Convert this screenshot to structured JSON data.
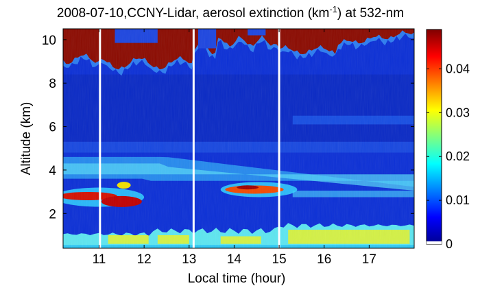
{
  "chart_data": {
    "type": "heatmap",
    "title": {
      "prefix": "2008-07-10,CCNY-Lidar, aerosol extinction (km",
      "superscript": "-1",
      "suffix": ") at 532-nm"
    },
    "xlabel": "Local time (hour)",
    "ylabel": "Altitude (km)",
    "xlim": [
      10.2,
      18.0
    ],
    "ylim": [
      0.4,
      10.5
    ],
    "xticks": [
      "11",
      "12",
      "13",
      "14",
      "15",
      "16",
      "17"
    ],
    "yticks": [
      "2",
      "4",
      "6",
      "8",
      "10"
    ],
    "colorbar": {
      "range": [
        0,
        0.049
      ],
      "ticks": [
        "0",
        "0.01",
        "0.02",
        "0.03",
        "0.04"
      ],
      "colormap": "jet"
    },
    "data_gaps_hours": [
      11.02,
      13.1,
      15.0
    ],
    "features": [
      {
        "name": "boundary layer (near surface)",
        "time": [
          10.2,
          18.0
        ],
        "altitude": [
          0.5,
          1.5
        ],
        "extinction": 0.018
      },
      {
        "name": "aerosol layer A",
        "time": [
          10.2,
          12.0
        ],
        "altitude": [
          2.3,
          3.0
        ],
        "extinction": 0.045
      },
      {
        "name": "aerosol layer B",
        "time": [
          13.7,
          15.3
        ],
        "altitude": [
          2.9,
          3.3
        ],
        "extinction": 0.04
      },
      {
        "name": "residual layer band",
        "time": [
          10.2,
          18.0
        ],
        "altitude": [
          3.5,
          4.6
        ],
        "extinction": 0.012
      },
      {
        "name": "cirrus cloud",
        "time": [
          10.2,
          18.0
        ],
        "altitude": [
          8.5,
          10.5
        ],
        "extinction": 0.049
      }
    ],
    "grid": false
  }
}
